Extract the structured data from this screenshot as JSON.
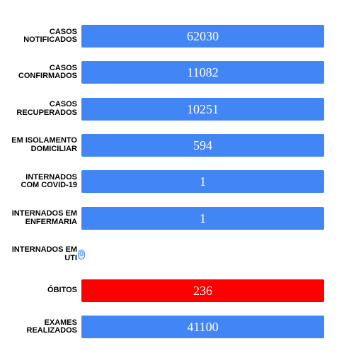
{
  "chart_data": {
    "type": "bar",
    "orientation": "horizontal",
    "categories": [
      "CASOS\nNOTIFICADOS",
      "CASOS\nCONFIRMADOS",
      "CASOS\nRECUPERADOS",
      "EM ISOLAMENTO\nDOMICILIAR",
      "INTERNADOS\nCOM COVID-19",
      "INTERNADOS EM\nENFERMARIA",
      "INTERNADOS EM\nUTI",
      "ÓBITOS",
      "EXAMES\nREALIZADOS"
    ],
    "values": [
      62030,
      11082,
      10251,
      594,
      1,
      1,
      0,
      236,
      41100
    ],
    "bar_colors": [
      "#4285f4",
      "#4285f4",
      "#4285f4",
      "#4285f4",
      "#4285f4",
      "#4285f4",
      "#4285f4",
      "#ff0000",
      "#4285f4"
    ],
    "value_label_color": "#ffffff",
    "title": "",
    "xlabel": "",
    "ylabel": "",
    "grid": false,
    "legend": "none"
  }
}
